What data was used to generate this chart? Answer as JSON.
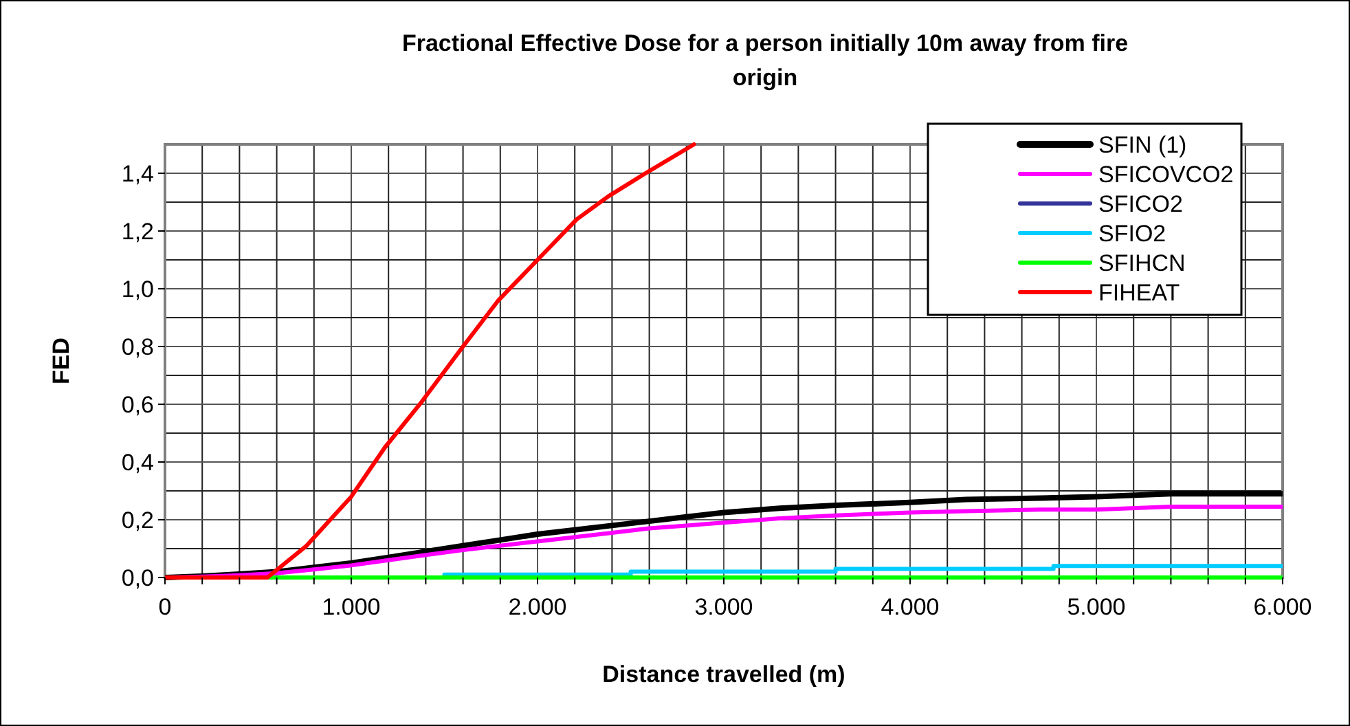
{
  "chart_data": {
    "type": "line",
    "title": "Fractional Effective Dose for a person initially 10m away from fire origin",
    "xlabel": "Distance travelled (m)",
    "ylabel": "FED",
    "xlim": [
      0,
      6000
    ],
    "ylim": [
      0,
      1.5
    ],
    "xticks": [
      0,
      {
        "value": 200,
        "label": null
      },
      {
        "value": 400,
        "label": null
      },
      {
        "value": 600,
        "label": null
      },
      {
        "value": 800,
        "label": null
      },
      {
        "value": 1000,
        "label": "1.000"
      },
      {
        "value": 1200,
        "label": null
      },
      {
        "value": 1400,
        "label": null
      },
      {
        "value": 1600,
        "label": null
      },
      {
        "value": 1800,
        "label": null
      },
      {
        "value": 2000,
        "label": "2.000"
      },
      {
        "value": 2200,
        "label": null
      },
      {
        "value": 2400,
        "label": null
      },
      {
        "value": 2600,
        "label": null
      },
      {
        "value": 2800,
        "label": null
      },
      {
        "value": 3000,
        "label": "3.000"
      },
      {
        "value": 3200,
        "label": null
      },
      {
        "value": 3400,
        "label": null
      },
      {
        "value": 3600,
        "label": null
      },
      {
        "value": 3800,
        "label": null
      },
      {
        "value": 4000,
        "label": "4.000"
      },
      {
        "value": 4200,
        "label": null
      },
      {
        "value": 4400,
        "label": null
      },
      {
        "value": 4600,
        "label": null
      },
      {
        "value": 4800,
        "label": null
      },
      {
        "value": 5000,
        "label": "5.000"
      },
      {
        "value": 5200,
        "label": null
      },
      {
        "value": 5400,
        "label": null
      },
      {
        "value": 5600,
        "label": null
      },
      {
        "value": 5800,
        "label": null
      },
      {
        "value": 6000,
        "label": "6.000"
      }
    ],
    "yticks": [
      {
        "value": 0,
        "label": "0,0"
      },
      {
        "value": 0.1,
        "label": null
      },
      {
        "value": 0.2,
        "label": "0,2"
      },
      {
        "value": 0.3,
        "label": null
      },
      {
        "value": 0.4,
        "label": "0,4"
      },
      {
        "value": 0.5,
        "label": null
      },
      {
        "value": 0.6,
        "label": "0,6"
      },
      {
        "value": 0.7,
        "label": null
      },
      {
        "value": 0.8,
        "label": "0,8"
      },
      {
        "value": 0.9,
        "label": null
      },
      {
        "value": 1.0,
        "label": "1,0"
      },
      {
        "value": 1.1,
        "label": null
      },
      {
        "value": 1.2,
        "label": "1,2"
      },
      {
        "value": 1.3,
        "label": null
      },
      {
        "value": 1.4,
        "label": "1,4"
      }
    ],
    "grid": true,
    "legend": "top right",
    "marker": "none",
    "line_style": "solid",
    "series": [
      {
        "name": "SFIN (1)",
        "color": "#000000",
        "x": [
          0,
          200,
          400,
          600,
          800,
          1000,
          1200,
          1400,
          1600,
          1800,
          2000,
          2200,
          2400,
          2600,
          2800,
          3000,
          3300,
          3600,
          4000,
          4300,
          4700,
          5000,
          5400,
          6000
        ],
        "values": [
          0,
          0.005,
          0.012,
          0.02,
          0.035,
          0.05,
          0.07,
          0.09,
          0.11,
          0.13,
          0.15,
          0.165,
          0.18,
          0.195,
          0.21,
          0.225,
          0.24,
          0.25,
          0.26,
          0.27,
          0.275,
          0.28,
          0.29,
          0.29
        ]
      },
      {
        "name": "SFICOVCO2",
        "color": "#ff00ff",
        "x": [
          0,
          200,
          400,
          600,
          800,
          1000,
          1200,
          1400,
          1600,
          1800,
          2000,
          2200,
          2400,
          2600,
          2800,
          3000,
          3300,
          3600,
          4000,
          4300,
          4700,
          5000,
          5400,
          6000
        ],
        "values": [
          0,
          0.003,
          0.008,
          0.015,
          0.028,
          0.042,
          0.06,
          0.078,
          0.095,
          0.11,
          0.125,
          0.14,
          0.155,
          0.17,
          0.18,
          0.19,
          0.205,
          0.215,
          0.225,
          0.23,
          0.235,
          0.235,
          0.245,
          0.245
        ]
      },
      {
        "name": "SFICO2",
        "color": "#333399"
      },
      {
        "name": "SFIO2",
        "color": "#00ccff",
        "x": [
          0,
          1500,
          1500,
          2500,
          2500,
          3600,
          3600,
          4770,
          4770,
          6000
        ],
        "values": [
          0,
          0,
          0.01,
          0.01,
          0.02,
          0.02,
          0.03,
          0.03,
          0.04,
          0.04
        ]
      },
      {
        "name": "SFIHCN",
        "color": "#00ff00",
        "x": [
          0,
          6000
        ],
        "values": [
          0,
          0
        ]
      },
      {
        "name": "FIHEAT",
        "color": "#ff0000",
        "x": [
          0,
          550,
          760,
          1000,
          1180,
          1380,
          1600,
          1790,
          2000,
          2210,
          2380,
          2580,
          2840
        ],
        "values": [
          0,
          0,
          0.11,
          0.28,
          0.45,
          0.61,
          0.8,
          0.96,
          1.1,
          1.24,
          1.32,
          1.4,
          1.5
        ]
      }
    ]
  }
}
